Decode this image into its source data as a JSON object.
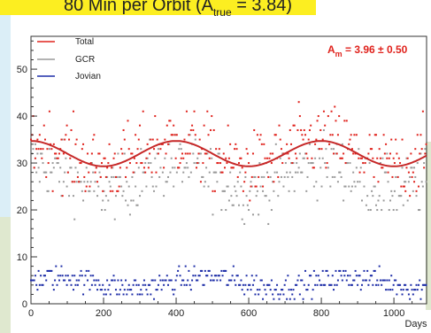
{
  "title": {
    "main": "80 Min per Orbit (A",
    "subscript": "true",
    "tail": " = 3.84)"
  },
  "fit_annotation": {
    "prefix": "A",
    "subscript": "m",
    "value": " = 3.96 ± 0.50"
  },
  "chart_data": {
    "type": "scatter",
    "title": "80 Min per Orbit (A_true = 3.84)",
    "xlabel": "Days",
    "ylabel": "",
    "xlim": [
      0,
      1090
    ],
    "ylim": [
      0,
      57
    ],
    "x_ticks": [
      0,
      200,
      400,
      600,
      800,
      1000
    ],
    "y_ticks": [
      0,
      10,
      20,
      30,
      40,
      50
    ],
    "grid": false,
    "legend_position": "top-left",
    "series": [
      {
        "name": "Total",
        "color": "#e0231d",
        "marker": "dot",
        "y_center": 32.5,
        "y_spread": 7.5,
        "description_values": "scattered points ~18–48"
      },
      {
        "name": "GCR",
        "color": "#9a9a9a",
        "marker": "dot",
        "y_center": 27.5,
        "y_spread": 6.5,
        "description_values": "scattered points ~15–42"
      },
      {
        "name": "Jovian",
        "color": "#1f2fa8",
        "marker": "dot",
        "y_center": 4.5,
        "y_spread": 2.5,
        "description_values": "points ~0–11"
      }
    ],
    "fit_curve": {
      "name": "fit",
      "color": "#c62828",
      "mean": 32.0,
      "amplitude": 2.7,
      "period_days": 400,
      "peak_day": 400,
      "description": "sinusoid oscillating between ~29.3 and ~34.7"
    },
    "annotation": "A_m = 3.96 ± 0.50"
  }
}
